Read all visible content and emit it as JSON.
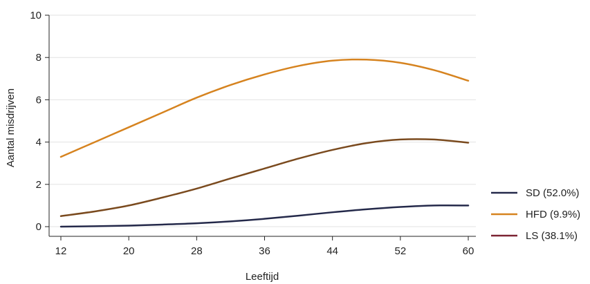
{
  "chart_data": {
    "type": "line",
    "title": "",
    "xlabel": "Leeftijd",
    "ylabel": "Aantal misdrijven",
    "xlim": [
      12,
      60
    ],
    "ylim": [
      0,
      10
    ],
    "xticks": [
      12,
      20,
      28,
      36,
      44,
      52,
      60
    ],
    "yticks": [
      0,
      2,
      4,
      6,
      8,
      10
    ],
    "grid": "horizontal",
    "legend_position": "bottom-right",
    "x": [
      12,
      16,
      20,
      24,
      28,
      32,
      36,
      40,
      44,
      48,
      52,
      56,
      60
    ],
    "series": [
      {
        "name": "SD (52.0%)",
        "color": "#24294a",
        "values": [
          0.0,
          0.02,
          0.05,
          0.1,
          0.16,
          0.25,
          0.37,
          0.52,
          0.68,
          0.82,
          0.93,
          1.0,
          1.0
        ]
      },
      {
        "name": "HFD (9.9%)",
        "color": "#d6831f",
        "values": [
          3.3,
          4.0,
          4.7,
          5.4,
          6.1,
          6.7,
          7.2,
          7.6,
          7.85,
          7.9,
          7.75,
          7.4,
          6.9
        ]
      },
      {
        "name": "LS (38.1%)",
        "color": "#7a4a1e",
        "legend_color": "#7b2232",
        "values": [
          0.5,
          0.72,
          1.0,
          1.38,
          1.8,
          2.28,
          2.75,
          3.22,
          3.63,
          3.95,
          4.12,
          4.12,
          3.97
        ]
      }
    ]
  }
}
